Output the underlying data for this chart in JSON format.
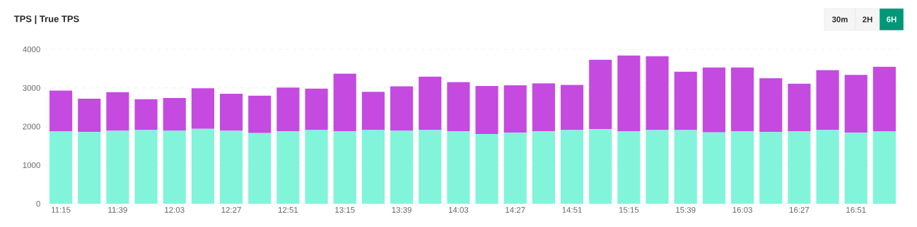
{
  "chart_data": {
    "type": "bar",
    "title": "TPS | True TPS",
    "stacked": true,
    "categories": [
      "11:15",
      null,
      "11:39",
      null,
      "12:03",
      null,
      "12:27",
      null,
      "12:51",
      null,
      "13:15",
      null,
      "13:39",
      null,
      "14:03",
      null,
      "14:27",
      null,
      "14:51",
      null,
      "15:15",
      null,
      "15:39",
      null,
      "16:03",
      null,
      "16:27",
      null,
      "16:51",
      null
    ],
    "series": [
      {
        "color": "#81f4da",
        "values": [
          1870,
          1860,
          1890,
          1910,
          1890,
          1940,
          1890,
          1830,
          1880,
          1910,
          1880,
          1910,
          1890,
          1910,
          1880,
          1810,
          1840,
          1880,
          1910,
          1930,
          1880,
          1910,
          1910,
          1850,
          1880,
          1860,
          1880,
          1910,
          1840,
          1870
        ]
      },
      {
        "color": "#c44ae0",
        "values": [
          1060,
          860,
          1000,
          800,
          850,
          1050,
          960,
          970,
          1130,
          1070,
          1490,
          990,
          1150,
          1380,
          1270,
          1240,
          1230,
          1240,
          1170,
          1800,
          1960,
          1910,
          1510,
          1680,
          1650,
          1390,
          1230,
          1550,
          1500,
          1680
        ]
      }
    ],
    "ylim": [
      0,
      4000
    ],
    "yticks": [
      0,
      1000,
      2000,
      3000,
      4000
    ],
    "grid": "y",
    "annotations": [
      "30m",
      "2H",
      "6H"
    ]
  }
}
